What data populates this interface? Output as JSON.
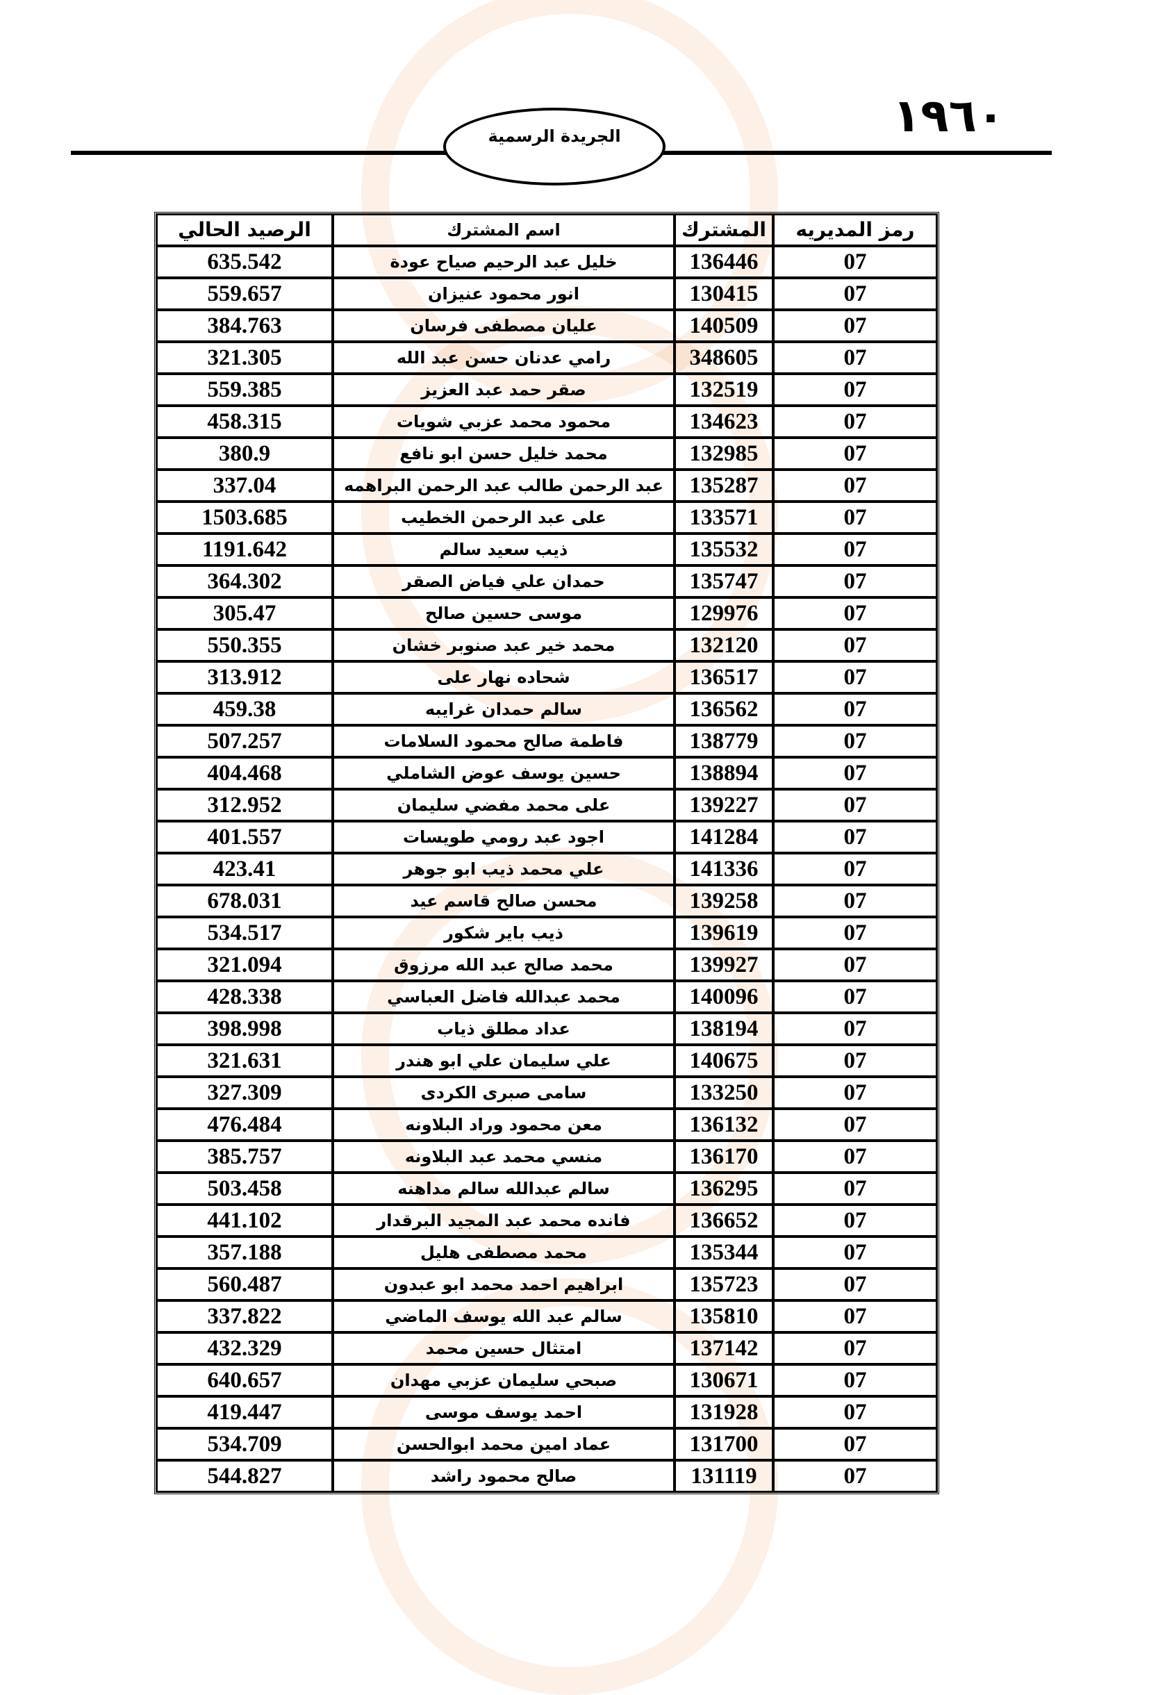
{
  "header": {
    "page_number": "١٩٦٠",
    "publication": "الجريدة الرسمية"
  },
  "table": {
    "columns": [
      "رمز المديريه",
      "المشترك",
      "اسم المشترك",
      "الرصيد الحالي"
    ],
    "rows": [
      [
        "07",
        "136446",
        "خليل عبد الرحيم صياح عودة",
        "635.542"
      ],
      [
        "07",
        "130415",
        "انور  محمود عنيزان",
        "559.657"
      ],
      [
        "07",
        "140509",
        "عليان مصطفى فرسان",
        "384.763"
      ],
      [
        "07",
        "348605",
        "رامي عدنان حسن عبد الله",
        "321.305"
      ],
      [
        "07",
        "132519",
        "صقر حمد عبد العزيز",
        "559.385"
      ],
      [
        "07",
        "134623",
        "محمود محمد عزبي شويات",
        "458.315"
      ],
      [
        "07",
        "132985",
        "محمد خليل حسن ابو نافع",
        "380.9"
      ],
      [
        "07",
        "135287",
        "عبد الرحمن طالب عبد الرحمن البراهمه",
        "337.04"
      ],
      [
        "07",
        "133571",
        "على عبد الرحمن الخطيب",
        "1503.685"
      ],
      [
        "07",
        "135532",
        "ذيب  سعيد سالم",
        "1191.642"
      ],
      [
        "07",
        "135747",
        "حمدان علي فياض الصقر",
        "364.302"
      ],
      [
        "07",
        "129976",
        "موسى حسين صالح",
        "305.47"
      ],
      [
        "07",
        "132120",
        "محمد خير عبد صنوبر خشان",
        "550.355"
      ],
      [
        "07",
        "136517",
        "شحاده نهار على",
        "313.912"
      ],
      [
        "07",
        "136562",
        "سالم حمدان غرايبه",
        "459.38"
      ],
      [
        "07",
        "138779",
        "فاطمة صالح محمود السلامات",
        "507.257"
      ],
      [
        "07",
        "138894",
        "حسين يوسف عوض الشاملي",
        "404.468"
      ],
      [
        "07",
        "139227",
        "على محمد مفضي سليمان",
        "312.952"
      ],
      [
        "07",
        "141284",
        "اجود عبد رومي طويسات",
        "401.557"
      ],
      [
        "07",
        "141336",
        "علي محمد ذيب ابو جوهر",
        "423.41"
      ],
      [
        "07",
        "139258",
        "محسن صالح قاسم عيد",
        "678.031"
      ],
      [
        "07",
        "139619",
        "ذيب  باير شكور",
        "534.517"
      ],
      [
        "07",
        "139927",
        "محمد صالح عبد الله مرزوق",
        "321.094"
      ],
      [
        "07",
        "140096",
        "محمد عبدالله فاضل العباسي",
        "428.338"
      ],
      [
        "07",
        "138194",
        "عداد مطلق  ذياب",
        "398.998"
      ],
      [
        "07",
        "140675",
        "علي سليمان علي ابو هندر",
        "321.631"
      ],
      [
        "07",
        "133250",
        "سامى صبرى الكردى",
        "327.309"
      ],
      [
        "07",
        "136132",
        "معن محمود وراد البلاونه",
        "476.484"
      ],
      [
        "07",
        "136170",
        "منسي محمد عبد البلاونه",
        "385.757"
      ],
      [
        "07",
        "136295",
        "سالم عبدالله سالم مداهنه",
        "503.458"
      ],
      [
        "07",
        "136652",
        "فانده محمد عبد المجيد البرقدار",
        "441.102"
      ],
      [
        "07",
        "135344",
        "محمد مصطفى هليل",
        "357.188"
      ],
      [
        "07",
        "135723",
        "ابراهيم احمد محمد ابو عبدون",
        "560.487"
      ],
      [
        "07",
        "135810",
        "سالم عبد الله يوسف الماضي",
        "337.822"
      ],
      [
        "07",
        "137142",
        "امتثال حسين محمد",
        "432.329"
      ],
      [
        "07",
        "130671",
        "صبحي سليمان عزبي مهدان",
        "640.657"
      ],
      [
        "07",
        "131928",
        "احمد يوسف  موسى",
        "419.447"
      ],
      [
        "07",
        "131700",
        "عماد امين محمد ابوالحسن",
        "534.709"
      ],
      [
        "07",
        "131119",
        "صالح محمود راشد",
        "544.827"
      ]
    ]
  }
}
